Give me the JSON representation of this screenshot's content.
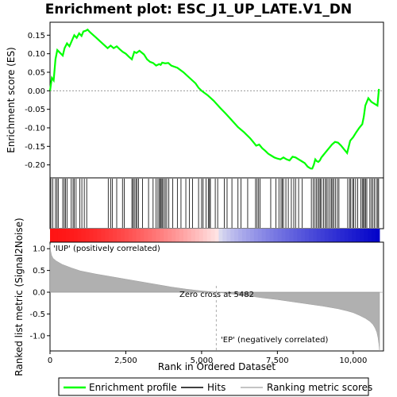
{
  "chart_data": {
    "type": "line",
    "title": "Enrichment plot: ESC_J1_UP_LATE.V1_DN",
    "xlabel": "Rank in Ordered Dataset",
    "ylabel_top": "Enrichment score (ES)",
    "ylabel_bottom": "Ranked list metric (Signal2Noise)",
    "xlim": [
      0,
      11000
    ],
    "n_genes": 10870,
    "x_ticks": [
      0,
      2500,
      5000,
      7500,
      10000
    ],
    "x_tick_labels": [
      "0",
      "2,500",
      "5,000",
      "7,500",
      "10,000"
    ],
    "es_ylim": [
      -0.235,
      0.185
    ],
    "es_ticks": [
      0.15,
      0.1,
      0.05,
      0.0,
      -0.05,
      -0.1,
      -0.15,
      -0.2
    ],
    "es_tick_labels": [
      "0.15",
      "0.10",
      "0.05",
      "0.00",
      "-0.05",
      "-0.10",
      "-0.15",
      "-0.20"
    ],
    "metric_ylim": [
      -1.35,
      1.15
    ],
    "metric_ticks": [
      1.0,
      0.5,
      0.0,
      -0.5,
      -1.0
    ],
    "metric_tick_labels": [
      "1.0",
      "0.5",
      "0.0",
      "-0.5",
      "-1.0"
    ],
    "series": [
      {
        "name": "Enrichment profile",
        "color": "#00ff00",
        "x": [
          0,
          60,
          120,
          180,
          240,
          300,
          420,
          480,
          560,
          640,
          720,
          800,
          880,
          960,
          1040,
          1100,
          1180,
          1240,
          1320,
          1500,
          1700,
          1900,
          2000,
          2100,
          2200,
          2300,
          2400,
          2500,
          2600,
          2700,
          2780,
          2850,
          2950,
          3100,
          3200,
          3300,
          3400,
          3500,
          3600,
          3650,
          3700,
          3800,
          3900,
          4000,
          4200,
          4400,
          4600,
          4800,
          4900,
          5000,
          5200,
          5400,
          5600,
          5800,
          6000,
          6200,
          6400,
          6600,
          6700,
          6800,
          6900,
          7000,
          7100,
          7200,
          7300,
          7400,
          7500,
          7600,
          7700,
          7800,
          7900,
          8000,
          8100,
          8200,
          8300,
          8400,
          8500,
          8600,
          8650,
          8700,
          8750,
          8800,
          8850,
          8900,
          8950,
          9000,
          9100,
          9200,
          9300,
          9400,
          9500,
          9600,
          9700,
          9800,
          9900,
          10000,
          10100,
          10200,
          10300,
          10350,
          10400,
          10500,
          10600,
          10700,
          10800,
          10850
        ],
        "values": [
          0.0,
          0.035,
          0.028,
          0.085,
          0.11,
          0.105,
          0.095,
          0.115,
          0.128,
          0.12,
          0.135,
          0.15,
          0.143,
          0.155,
          0.148,
          0.16,
          0.162,
          0.165,
          0.158,
          0.145,
          0.13,
          0.115,
          0.122,
          0.115,
          0.12,
          0.112,
          0.105,
          0.1,
          0.092,
          0.085,
          0.105,
          0.102,
          0.108,
          0.098,
          0.085,
          0.078,
          0.075,
          0.068,
          0.072,
          0.07,
          0.076,
          0.074,
          0.075,
          0.068,
          0.062,
          0.05,
          0.035,
          0.02,
          0.008,
          0.0,
          -0.012,
          -0.027,
          -0.045,
          -0.062,
          -0.08,
          -0.098,
          -0.112,
          -0.128,
          -0.138,
          -0.148,
          -0.145,
          -0.155,
          -0.162,
          -0.17,
          -0.175,
          -0.18,
          -0.183,
          -0.185,
          -0.18,
          -0.185,
          -0.188,
          -0.178,
          -0.18,
          -0.185,
          -0.19,
          -0.195,
          -0.205,
          -0.21,
          -0.21,
          -0.2,
          -0.185,
          -0.19,
          -0.192,
          -0.188,
          -0.18,
          -0.175,
          -0.165,
          -0.155,
          -0.145,
          -0.138,
          -0.14,
          -0.148,
          -0.158,
          -0.168,
          -0.135,
          -0.125,
          -0.112,
          -0.1,
          -0.09,
          -0.07,
          -0.04,
          -0.02,
          -0.03,
          -0.035,
          -0.04,
          0.005
        ]
      }
    ],
    "hits": [
      30,
      90,
      180,
      230,
      270,
      420,
      470,
      510,
      560,
      700,
      760,
      800,
      860,
      980,
      1050,
      1130,
      1210,
      1920,
      2000,
      2060,
      2200,
      2390,
      2450,
      2700,
      2740,
      2780,
      2830,
      2870,
      2920,
      3050,
      3250,
      3400,
      3500,
      3560,
      3610,
      3640,
      3670,
      3710,
      3750,
      3800,
      3850,
      3920,
      4050,
      4200,
      4320,
      4480,
      4600,
      4700,
      4900,
      5000,
      5050,
      5150,
      5220,
      5260,
      5290,
      5450,
      5530,
      5750,
      5840,
      6000,
      6200,
      6300,
      6520,
      6780,
      6830,
      6880,
      6930,
      7280,
      7450,
      7550,
      7620,
      7660,
      7700,
      7780,
      7860,
      7960,
      8040,
      8100,
      8200,
      8320,
      8620,
      8680,
      8740,
      8790,
      8840,
      8880,
      8920,
      8960,
      9020,
      9080,
      9120,
      9170,
      9230,
      9280,
      9320,
      9360,
      9420,
      9480,
      9530,
      9820,
      9880,
      9920,
      9980,
      10020,
      10080,
      10150,
      10250,
      10300,
      10340,
      10370,
      10410,
      10450,
      10550,
      10600,
      10650,
      10700,
      10760,
      10810,
      10840
    ],
    "metric": {
      "color": "#b0b0b0",
      "x": [
        0,
        20,
        50,
        100,
        200,
        400,
        700,
        1000,
        1500,
        2000,
        2500,
        3000,
        3500,
        4000,
        4500,
        5000,
        5482,
        6000,
        6500,
        7000,
        7500,
        8000,
        8500,
        9000,
        9500,
        9800,
        10000,
        10200,
        10400,
        10550,
        10650,
        10720,
        10780,
        10820,
        10850,
        10870
      ],
      "values": [
        1.1,
        0.95,
        0.85,
        0.78,
        0.72,
        0.64,
        0.56,
        0.49,
        0.42,
        0.36,
        0.3,
        0.24,
        0.18,
        0.12,
        0.07,
        0.03,
        0.0,
        -0.04,
        -0.08,
        -0.13,
        -0.17,
        -0.22,
        -0.27,
        -0.32,
        -0.38,
        -0.43,
        -0.47,
        -0.53,
        -0.6,
        -0.67,
        -0.74,
        -0.82,
        -0.92,
        -1.05,
        -1.2,
        -1.35
      ]
    },
    "zero_cross": 5482,
    "annotations": {
      "zero_cross_label": "Zero cross at 5482",
      "pos_label": "'IUP' (positively correlated)",
      "neg_label": "'EP' (negatively correlated)",
      "pos_color": "#ff0000",
      "neg_color": "#0000ff"
    },
    "legend": [
      {
        "label": "Enrichment profile",
        "color": "#00ff00"
      },
      {
        "label": "Hits",
        "color": "#000000"
      },
      {
        "label": "Ranking metric scores",
        "color": "#b0b0b0"
      }
    ]
  }
}
